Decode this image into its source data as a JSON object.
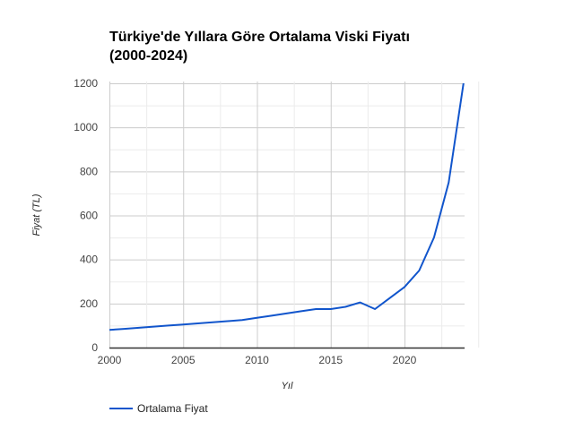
{
  "chart_data": {
    "type": "line",
    "title": "Türkiye'de Yıllara Göre Ortalama Viski Fiyatı (2000-2024)",
    "title_lines": [
      "Türkiye'de Yıllara Göre Ortalama Viski Fiyatı",
      "(2000-2024)"
    ],
    "xlabel": "Yıl",
    "ylabel": "Fiyat (TL)",
    "x": [
      2000,
      2001,
      2002,
      2003,
      2004,
      2005,
      2006,
      2007,
      2008,
      2009,
      2010,
      2011,
      2012,
      2013,
      2014,
      2015,
      2016,
      2017,
      2018,
      2019,
      2020,
      2021,
      2022,
      2023,
      2024
    ],
    "series": [
      {
        "name": "Ortalama Fiyat",
        "color": "#1155cc",
        "values": [
          80,
          85,
          90,
          95,
          100,
          105,
          110,
          115,
          120,
          125,
          135,
          145,
          155,
          165,
          175,
          175,
          185,
          205,
          175,
          225,
          275,
          350,
          500,
          750,
          1200
        ]
      }
    ],
    "xlim": [
      2000,
      2025
    ],
    "ylim": [
      0,
      1200
    ],
    "xticks": [
      "2000",
      "2005",
      "2010",
      "2015",
      "2020"
    ],
    "yticks": [
      "0",
      "200",
      "400",
      "600",
      "800",
      "1000",
      "1200"
    ],
    "grid": true,
    "minor_grid": true,
    "legend_position": "bottom"
  }
}
